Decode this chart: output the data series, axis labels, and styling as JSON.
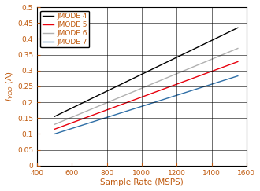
{
  "title": "",
  "xlabel": "Sample Rate (MSPS)",
  "ylabel": "I_{VDD} (A)",
  "xlim": [
    400,
    1600
  ],
  "ylim": [
    0,
    0.5
  ],
  "xticks": [
    400,
    600,
    800,
    1000,
    1200,
    1400,
    1600
  ],
  "yticks": [
    0,
    0.05,
    0.1,
    0.15,
    0.2,
    0.25,
    0.3,
    0.35,
    0.4,
    0.45,
    0.5
  ],
  "ytick_labels": [
    "0",
    "0.05",
    "0.1",
    "0.15",
    "0.2",
    "0.25",
    "0.3",
    "0.35",
    "0.4",
    "0.45",
    "0.5"
  ],
  "series": [
    {
      "label": "JMODE 4",
      "color": "#000000",
      "x": [
        500,
        1550
      ],
      "y": [
        0.155,
        0.435
      ]
    },
    {
      "label": "JMODE 5",
      "color": "#e8000d",
      "x": [
        500,
        1550
      ],
      "y": [
        0.115,
        0.328
      ]
    },
    {
      "label": "JMODE 6",
      "color": "#b0b0b0",
      "x": [
        500,
        1550
      ],
      "y": [
        0.13,
        0.37
      ]
    },
    {
      "label": "JMODE 7",
      "color": "#2e6ea6",
      "x": [
        500,
        1550
      ],
      "y": [
        0.1,
        0.283
      ]
    }
  ],
  "legend_loc": "upper left",
  "legend_fontsize": 6.5,
  "tick_fontsize": 6.5,
  "label_fontsize": 7.5,
  "label_color": "#c05a0e",
  "tick_color": "#c05a0e",
  "grid_color": "#000000",
  "grid_linewidth": 0.4,
  "linewidth": 1.0,
  "figwidth": 3.3,
  "figheight": 2.43,
  "dpi": 100
}
